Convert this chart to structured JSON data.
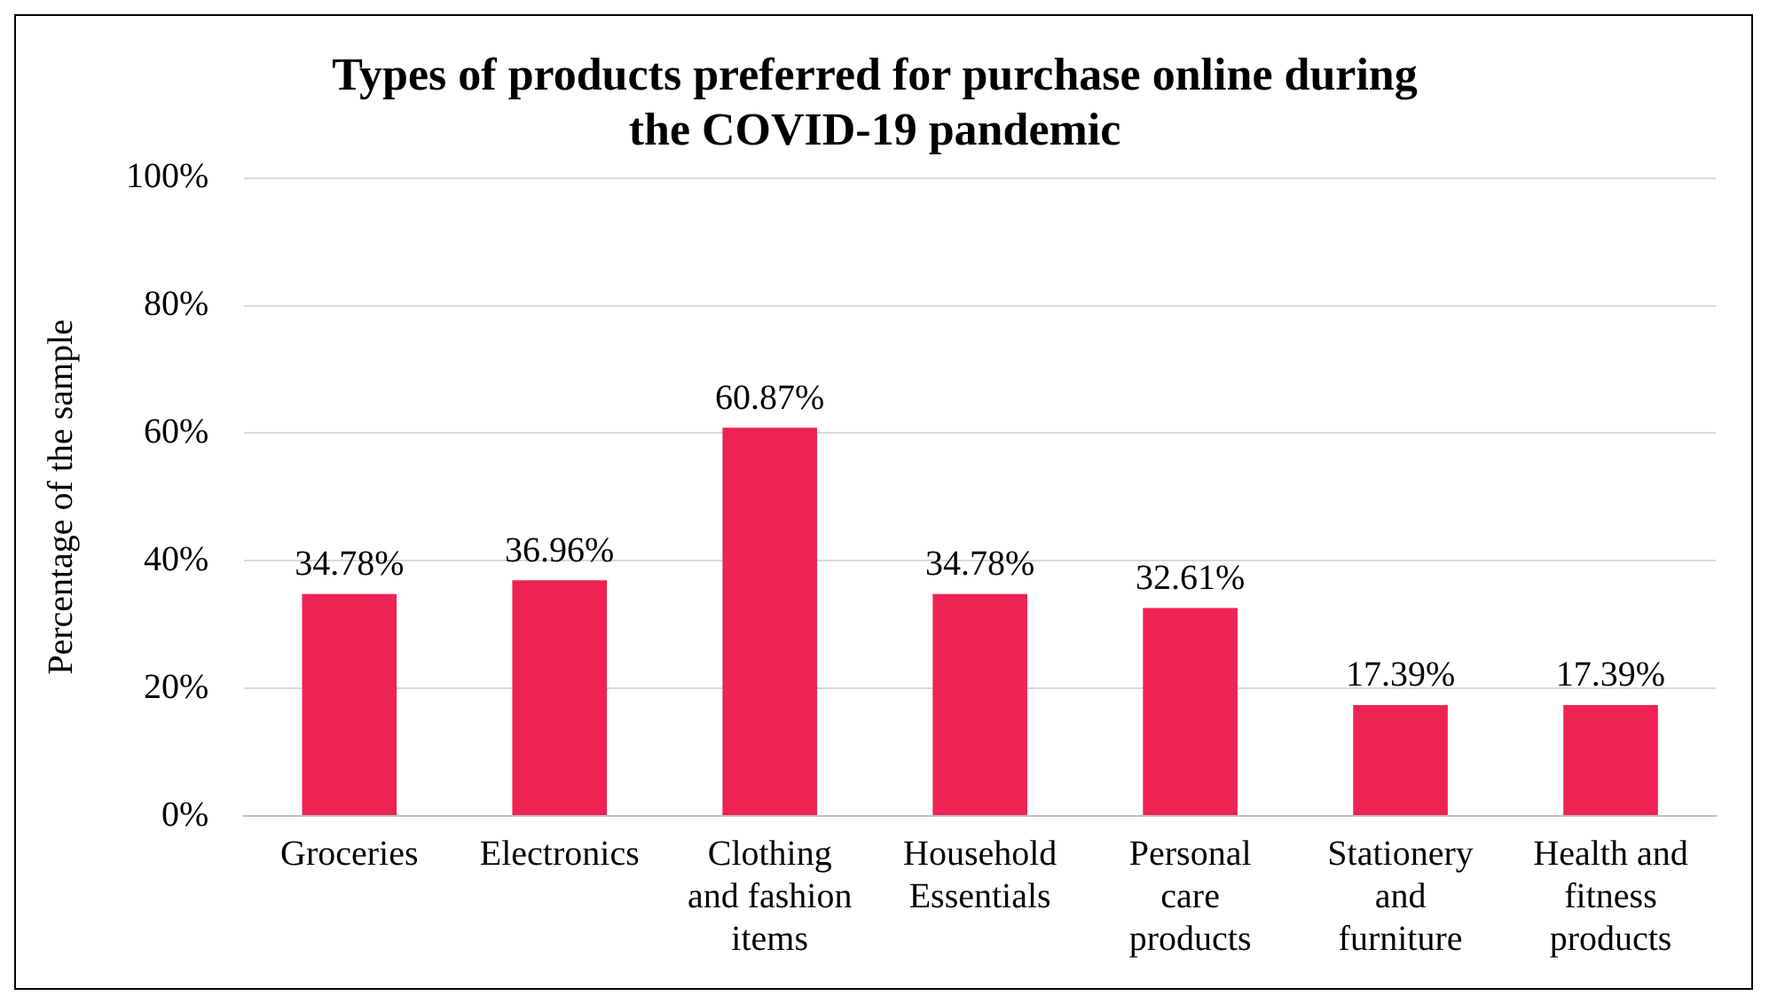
{
  "chart_data": {
    "type": "bar",
    "title": "Types of products preferred for purchase online during the COVID-19 pandemic",
    "ylabel": "Percentage of the sample",
    "categories": [
      "Groceries",
      "Electronics",
      "Clothing and fashion items",
      "Household Essentials",
      "Personal care products",
      "Stationery and furniture",
      "Health and fitness products"
    ],
    "values": [
      34.78,
      36.96,
      60.87,
      34.78,
      32.61,
      17.39,
      17.39
    ],
    "value_labels": [
      "34.78%",
      "36.96%",
      "60.87%",
      "34.78%",
      "32.61%",
      "17.39%",
      "17.39%"
    ],
    "color": "#ee2353",
    "ylim": [
      0,
      100
    ],
    "yticks": [
      {
        "value": 0,
        "label": "0%"
      },
      {
        "value": 20,
        "label": "20%"
      },
      {
        "value": 40,
        "label": "40%"
      },
      {
        "value": 60,
        "label": "60%"
      },
      {
        "value": 80,
        "label": "80%"
      },
      {
        "value": 100,
        "label": "100%"
      }
    ],
    "grid": "y",
    "legend": false
  }
}
